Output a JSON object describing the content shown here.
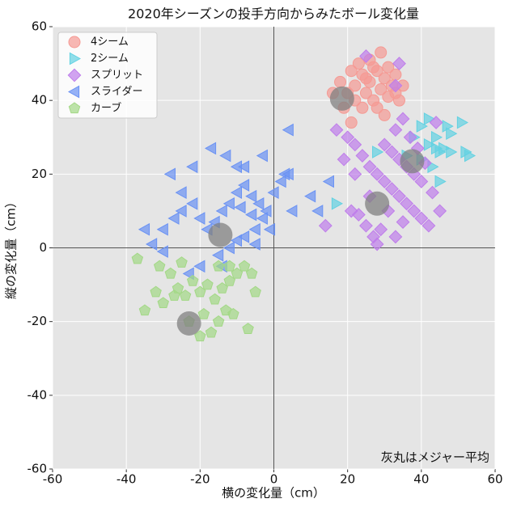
{
  "chart_data": {
    "type": "scatter",
    "title": "2020年シーズンの投手方向からみたボール変化量",
    "x_label": "横の変化量（cm）",
    "y_label": "縦の変化量（cm）",
    "annotation": "灰丸はメジャー平均",
    "xlim": [
      -60,
      60
    ],
    "ylim": [
      -60,
      60
    ],
    "xticks": [
      -60,
      -40,
      -20,
      0,
      20,
      40,
      60
    ],
    "yticks": [
      -60,
      -40,
      -20,
      0,
      20,
      40,
      60
    ],
    "grid": true,
    "legend": "upper left",
    "series": [
      {
        "name": "4シーム",
        "color": "#f59a94",
        "marker": "circle",
        "x": [
          22,
          24,
          26,
          28,
          30,
          32,
          25,
          27,
          29,
          31,
          33,
          21,
          23,
          26,
          29,
          20,
          18,
          16,
          34,
          35,
          28,
          24,
          30,
          22,
          19,
          27,
          31,
          25,
          33,
          21
        ],
        "y": [
          44,
          47,
          45,
          48,
          46,
          44,
          42,
          40,
          43,
          41,
          47,
          48,
          50,
          51,
          53,
          42,
          45,
          42,
          40,
          44,
          38,
          38,
          36,
          40,
          38,
          49,
          49,
          46,
          42,
          34
        ]
      },
      {
        "name": "2シーム",
        "color": "#62d2e2",
        "marker": "triangle-right",
        "x": [
          45,
          48,
          52,
          53,
          51,
          47,
          44,
          42,
          40,
          38,
          43,
          45,
          46,
          36,
          40,
          42,
          17,
          28,
          48,
          44
        ],
        "y": [
          26,
          26,
          26,
          25,
          34,
          33,
          30,
          35,
          33,
          30,
          22,
          18,
          27,
          25,
          24,
          28,
          12,
          26,
          31,
          27
        ]
      },
      {
        "name": "スプリット",
        "color": "#bf7deb",
        "marker": "diamond",
        "x": [
          17,
          20,
          22,
          24,
          26,
          28,
          30,
          32,
          34,
          36,
          38,
          40,
          42,
          30,
          32,
          34,
          36,
          38,
          40,
          33,
          35,
          37,
          39,
          41,
          43,
          29,
          27,
          25,
          23,
          21,
          19,
          22,
          26,
          31,
          35,
          28,
          33,
          45,
          44,
          33,
          34,
          25,
          14
        ],
        "y": [
          32,
          30,
          28,
          25,
          22,
          20,
          18,
          16,
          14,
          12,
          10,
          8,
          6,
          28,
          26,
          24,
          22,
          20,
          18,
          32,
          35,
          30,
          27,
          23,
          15,
          5,
          3,
          6,
          9,
          10,
          24,
          20,
          14,
          10,
          7,
          1,
          3,
          10,
          34,
          44,
          50,
          52,
          6
        ]
      },
      {
        "name": "スライダー",
        "color": "#6a92f4",
        "marker": "triangle-left",
        "x": [
          -30,
          -27,
          -25,
          -22,
          -20,
          -18,
          -16,
          -14,
          -12,
          -10,
          -8,
          -6,
          -4,
          -2,
          0,
          2,
          4,
          -5,
          -8,
          -10,
          -12,
          -15,
          -20,
          -23,
          -25,
          -28,
          -22,
          -17,
          -13,
          -8,
          -3,
          3,
          5,
          10,
          12,
          15,
          -35,
          -33,
          -30,
          -3,
          -1,
          -6,
          -9,
          4,
          -10,
          -14,
          -5
        ],
        "y": [
          5,
          8,
          10,
          12,
          8,
          5,
          7,
          10,
          12,
          15,
          17,
          14,
          12,
          10,
          15,
          18,
          20,
          5,
          3,
          2,
          0,
          -2,
          -5,
          -7,
          15,
          20,
          22,
          27,
          25,
          22,
          25,
          20,
          10,
          14,
          10,
          18,
          5,
          1,
          -1,
          8,
          5,
          9,
          11,
          32,
          22,
          -5,
          1
        ]
      },
      {
        "name": "カーブ",
        "color": "#a3d886",
        "marker": "pentagon",
        "x": [
          -37,
          -35,
          -32,
          -30,
          -28,
          -26,
          -24,
          -22,
          -20,
          -18,
          -16,
          -14,
          -12,
          -10,
          -8,
          -6,
          -5,
          -13,
          -15,
          -17,
          -20,
          -23,
          -12,
          -15,
          -27,
          -19,
          -11,
          -7,
          -31,
          -25
        ],
        "y": [
          -3,
          -17,
          -12,
          -15,
          -7,
          -11,
          -13,
          -9,
          -12,
          -10,
          -14,
          -11,
          -9,
          -7,
          -5,
          -7,
          -12,
          -17,
          -20,
          -23,
          -24,
          -20,
          -5,
          -5,
          -13,
          -18,
          -18,
          -22,
          -5,
          -4
        ]
      }
    ],
    "averages": {
      "color": "#808080",
      "x": [
        18.5,
        37.5,
        28,
        -14.5,
        -23
      ],
      "y": [
        40.5,
        23.5,
        12,
        3.5,
        -20.5
      ]
    }
  }
}
